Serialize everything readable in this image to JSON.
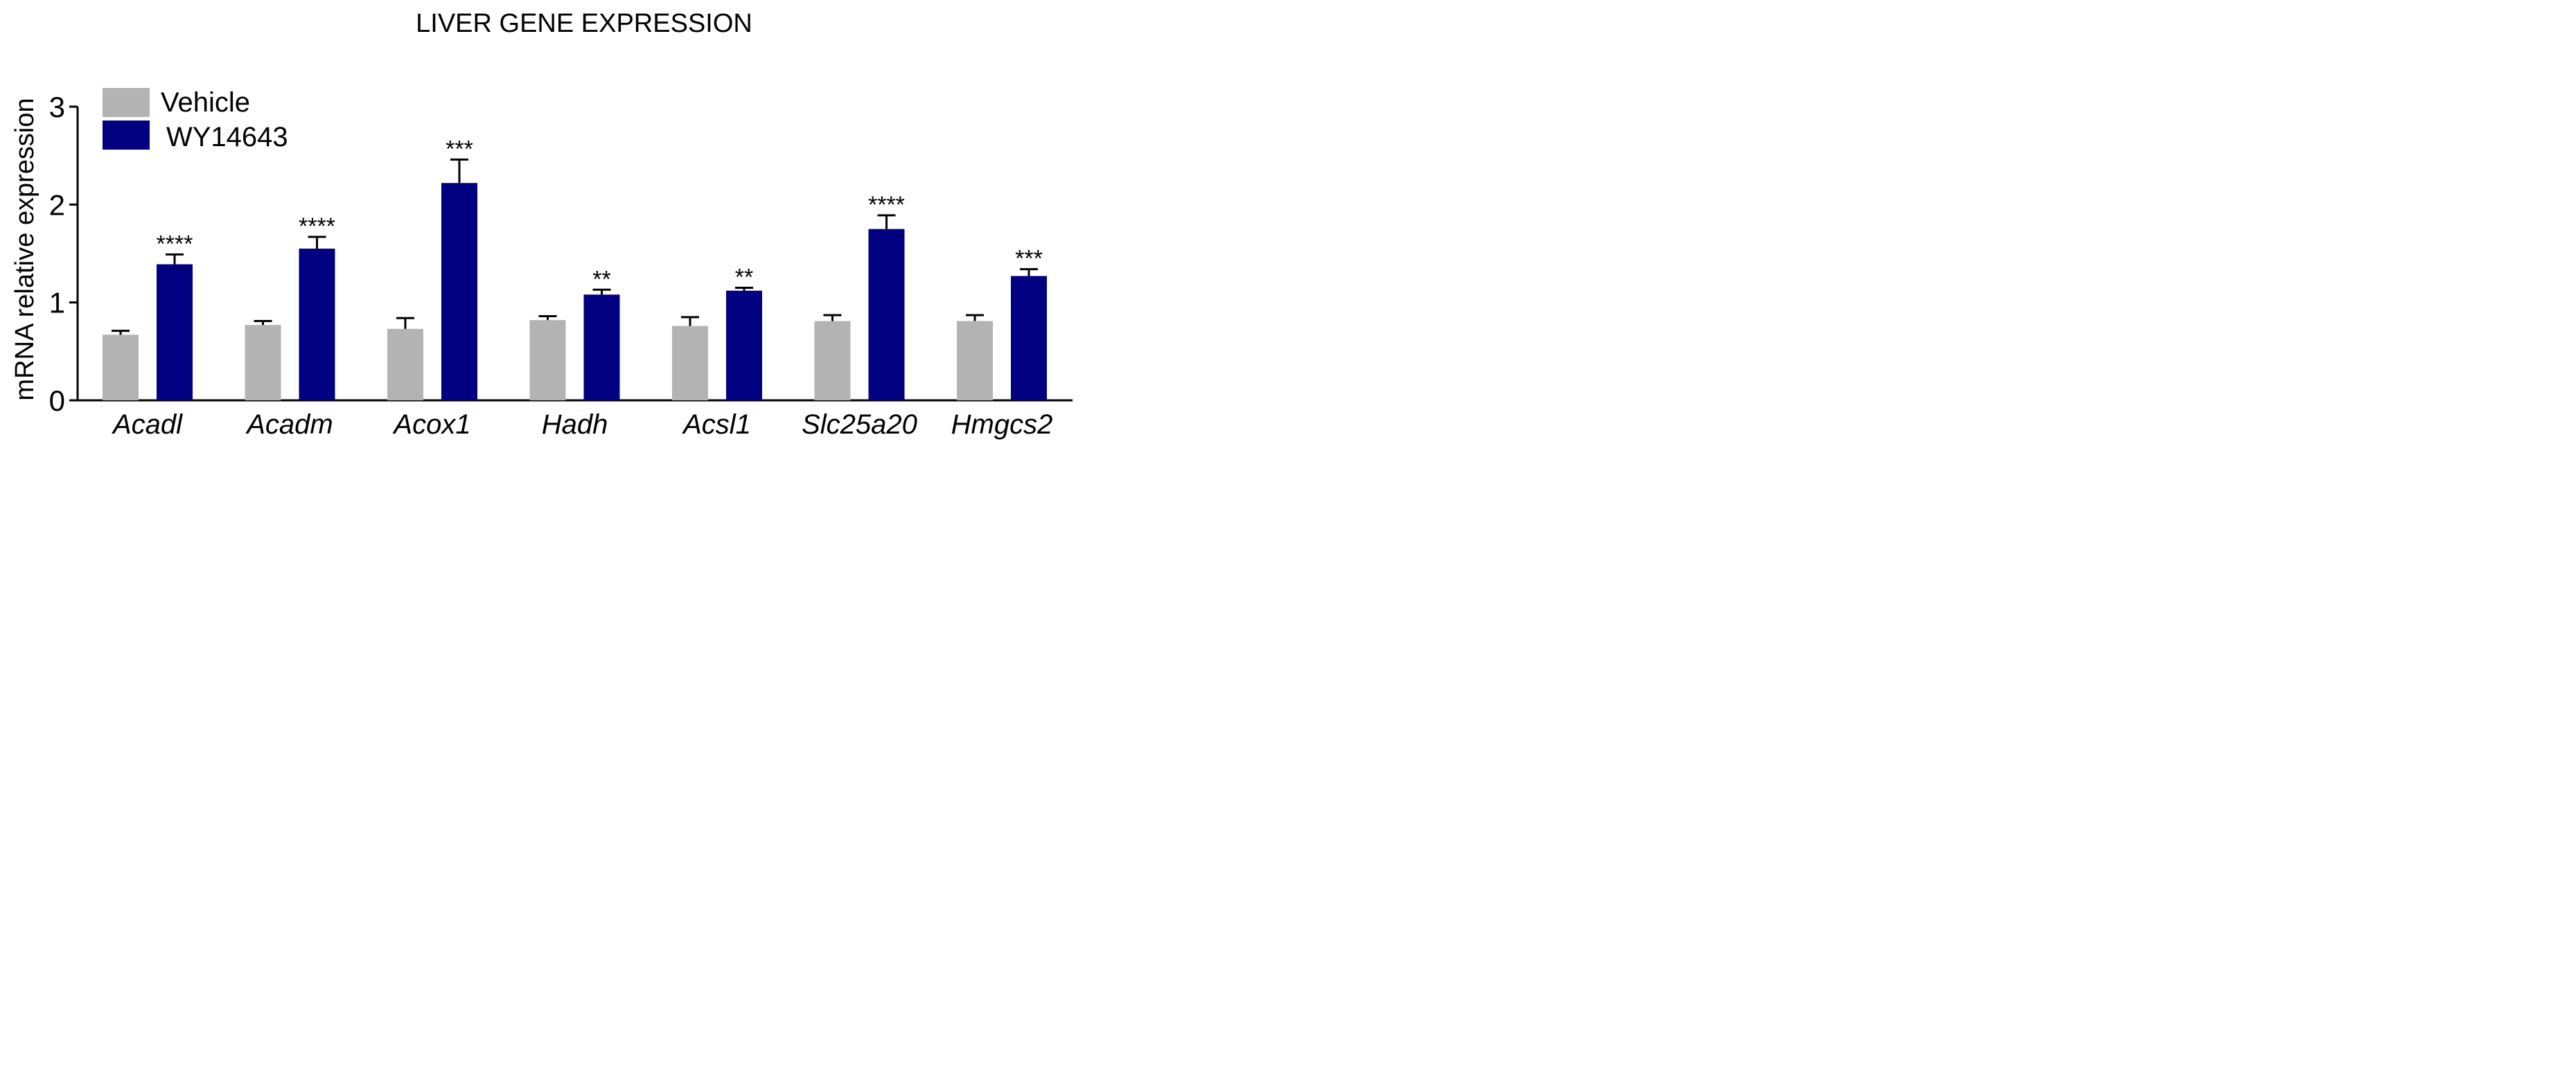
{
  "chart_data": {
    "type": "bar",
    "title": "LIVER GENE EXPRESSION",
    "xlabel": "",
    "ylabel": "mRNA relative expression",
    "ylim": [
      0,
      3
    ],
    "yticks": [
      "0",
      "1",
      "2",
      "3"
    ],
    "grid": false,
    "legend_position": "top-left",
    "categories": [
      "Acadl",
      "Acadm",
      "Acox1",
      "Hadh",
      "Acsl1",
      "Slc25a20",
      "Hmgcs2"
    ],
    "series": [
      {
        "name": "Vehicle",
        "color": "#b3b3b3",
        "values": [
          0.67,
          0.77,
          0.73,
          0.82,
          0.76,
          0.81,
          0.81
        ],
        "errors": [
          0.04,
          0.04,
          0.11,
          0.04,
          0.09,
          0.06,
          0.06
        ]
      },
      {
        "name": "WY14643",
        "color": "#000080",
        "values": [
          1.39,
          1.55,
          2.22,
          1.08,
          1.12,
          1.75,
          1.27
        ],
        "errors": [
          0.1,
          0.12,
          0.24,
          0.05,
          0.03,
          0.14,
          0.07
        ]
      }
    ],
    "significance": [
      "****",
      "****",
      "***",
      "**",
      "**",
      "****",
      "***"
    ]
  }
}
